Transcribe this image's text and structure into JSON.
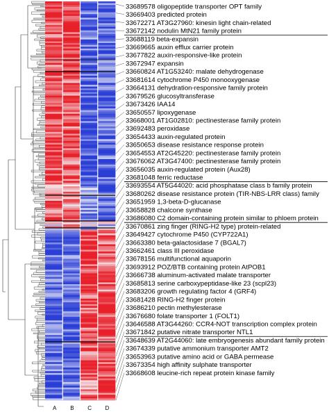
{
  "heatmap": {
    "columns": [
      "A",
      "B",
      "C",
      "D"
    ],
    "colors": {
      "high": "#e8202a",
      "low": "#2b3fd6",
      "mid": "#f3f3f6",
      "line": "#000000"
    }
  },
  "labels": [
    {
      "text": "33689578 oligopeptide transporter OPT family"
    },
    {
      "text": "33669403 predicted protein"
    },
    {
      "text": "33672271 AT3G27960: kinesin light chain-related"
    },
    {
      "text": "33672142 nodulin MtN21 family protein"
    },
    {
      "text": "33688119 beta-expansin"
    },
    {
      "text": "33669665 auxin efflux carrier protein"
    },
    {
      "text": "33677822 auxin-responsive-like protein"
    },
    {
      "text": "33672947 expansin"
    },
    {
      "text": "33660824 AT1G53240: malate dehydrogenase"
    },
    {
      "text": "33681614 cytochrome P450 monooxygenase"
    },
    {
      "text": "33664131 dehydration-responsive family protein"
    },
    {
      "text": "33679526 glucosyltransferase"
    },
    {
      "text": "33673426 IAA14"
    },
    {
      "text": "33650557 lipoxygenase"
    },
    {
      "text": "33668001 AT1G02810: pectinesterase family protein"
    },
    {
      "text": "33692483 peroxidase"
    },
    {
      "text": "33654433 auxin-regulated protein"
    },
    {
      "text": "33650653 disease resistance response protein"
    },
    {
      "text": "33654553 AT2G45220: pectinesterase family protein"
    },
    {
      "text": "33676062 AT3G47400: pectinesterase family protein"
    },
    {
      "text": "33656035 auxin-regulated protein (Aux28)"
    },
    {
      "text": "33681048 ferric reductase"
    },
    {
      "text": "33693554 AT5G44020: acid phosphatase class b family protein"
    },
    {
      "text": "33680262 disease resistance protein (TIR-NBS-LRR class) family"
    },
    {
      "text": "33651959 1,3-beta-D-glucanase"
    },
    {
      "text": "33658828 chalcone synthase"
    },
    {
      "text": "33686080 C2 domain-containing protein similar to phloem protein"
    },
    {
      "text": "33670861 zing finger (RING-H2 type) protein-related"
    },
    {
      "text": "33649427 cytochrome P450 (CYP722A1)"
    },
    {
      "text": "33663380 beta-galactosidase 7 (BGAL7)"
    },
    {
      "text": "33662461 class III peroxidase"
    },
    {
      "text": "33678156 multifunctional aquaporin"
    },
    {
      "text": "33693912 POZ/BTB containing protein AtPOB1"
    },
    {
      "text": "33666738 aluminum-activated malate transporter"
    },
    {
      "text": "33685813 serine carboxypeptidase-like 23 (scpl23)"
    },
    {
      "text": "33683206 growth regulating factor 4 (GRF4)"
    },
    {
      "text": "33681428 RING-H2 finger protein"
    },
    {
      "text": "33686210 pectin methylesterase"
    },
    {
      "text": "33676680 folate transporter 1 (FOLT1)"
    },
    {
      "text": "33646588 AT3G44260: CCR4-NOT transcription complex protein"
    },
    {
      "text": "33671842 putative nitrate transporter NTL1"
    },
    {
      "text": "33648639 AT2G44060: late embryogenesis abundant family protein"
    },
    {
      "text": "33674339 putative ammonium transporter AMT2"
    },
    {
      "text": "33653963 putative amino acid or GABA permease"
    },
    {
      "text": "33673354 high affinity sulphate transporter"
    },
    {
      "text": "33668608 leucine-rich repeat protein kinase family"
    }
  ]
}
